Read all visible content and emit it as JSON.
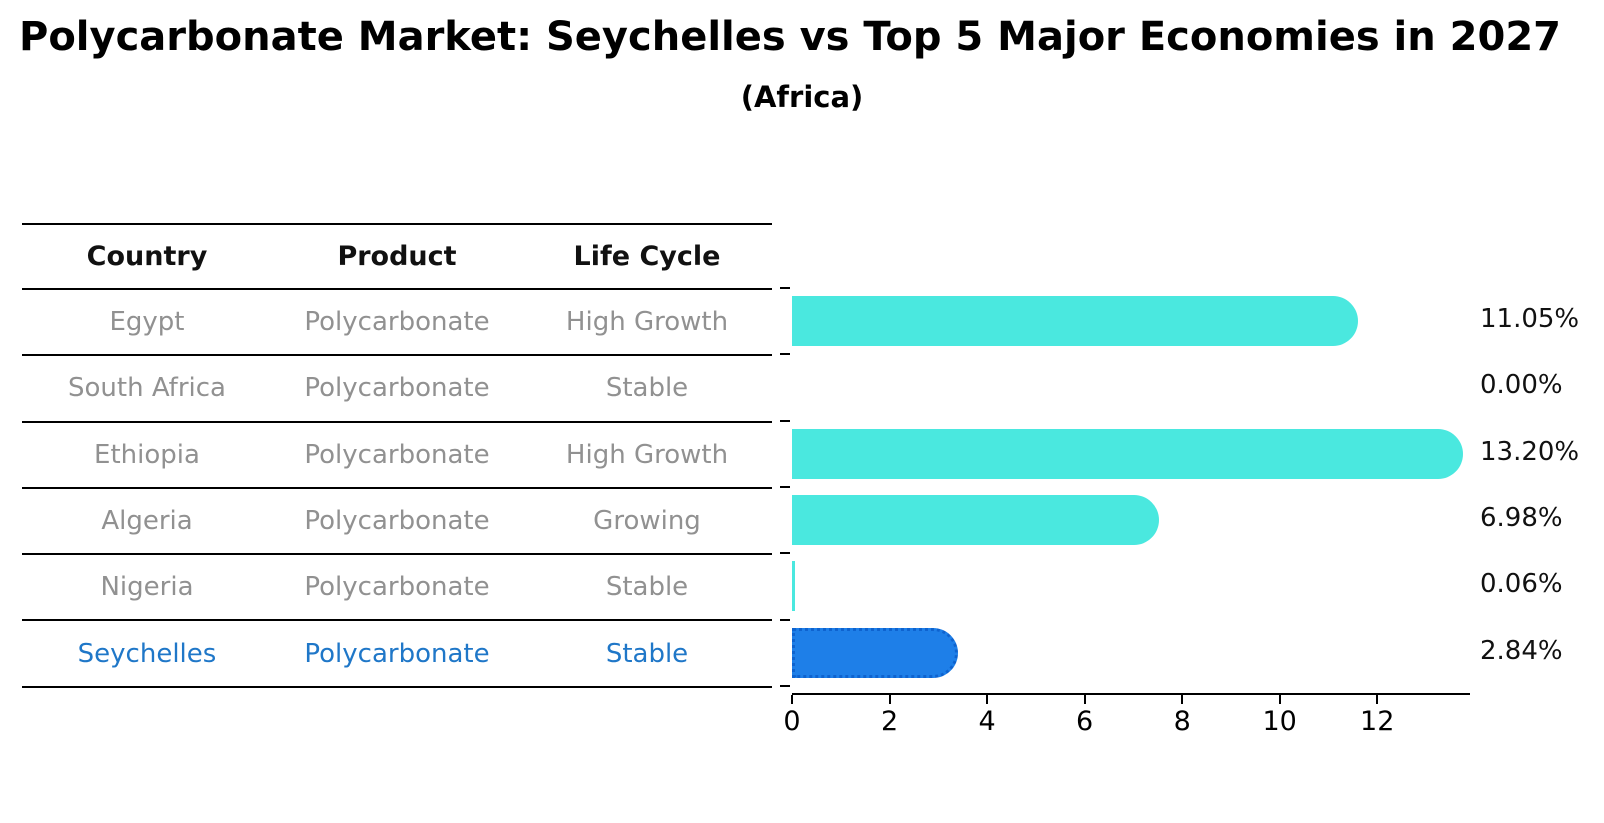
{
  "title": "Polycarbonate Market: Seychelles vs Top 5 Major Economies in 2027",
  "subtitle": "(Africa)",
  "colors": {
    "bar_default": "#4AE8DF",
    "bar_highlight": "#1E7FE8",
    "highlight_border": "#0e63cf",
    "highlight_text": "#1F77C8",
    "row_text": "#919191",
    "header_text": "#111111",
    "axis": "#000000"
  },
  "table": {
    "headers": [
      "Country",
      "Product",
      "Life Cycle"
    ],
    "rows": [
      {
        "country": "Egypt",
        "product": "Polycarbonate",
        "life_cycle": "High Growth",
        "highlight": false
      },
      {
        "country": "South Africa",
        "product": "Polycarbonate",
        "life_cycle": "Stable",
        "highlight": false
      },
      {
        "country": "Ethiopia",
        "product": "Polycarbonate",
        "life_cycle": "High Growth",
        "highlight": false
      },
      {
        "country": "Algeria",
        "product": "Polycarbonate",
        "life_cycle": "Growing",
        "highlight": false
      },
      {
        "country": "Nigeria",
        "product": "Polycarbonate",
        "life_cycle": "Stable",
        "highlight": false
      },
      {
        "country": "Seychelles",
        "product": "Polycarbonate",
        "life_cycle": "Stable",
        "highlight": true
      }
    ]
  },
  "chart_data": {
    "type": "bar",
    "orientation": "horizontal",
    "title": "Polycarbonate Market: Seychelles vs Top 5 Major Economies in 2027 (Africa)",
    "categories": [
      "Egypt",
      "South Africa",
      "Ethiopia",
      "Algeria",
      "Nigeria",
      "Seychelles"
    ],
    "values": [
      11.05,
      0.0,
      13.2,
      6.98,
      0.06,
      2.84
    ],
    "value_labels": [
      "11.05%",
      "0.00%",
      "13.20%",
      "6.98%",
      "0.06%",
      "2.84%"
    ],
    "highlight_category": "Seychelles",
    "xlabel": "",
    "ylabel": "",
    "xlim": [
      0,
      13.9
    ],
    "xticks": [
      0,
      2,
      4,
      6,
      8,
      10,
      12
    ],
    "grid": false,
    "legend": false
  }
}
